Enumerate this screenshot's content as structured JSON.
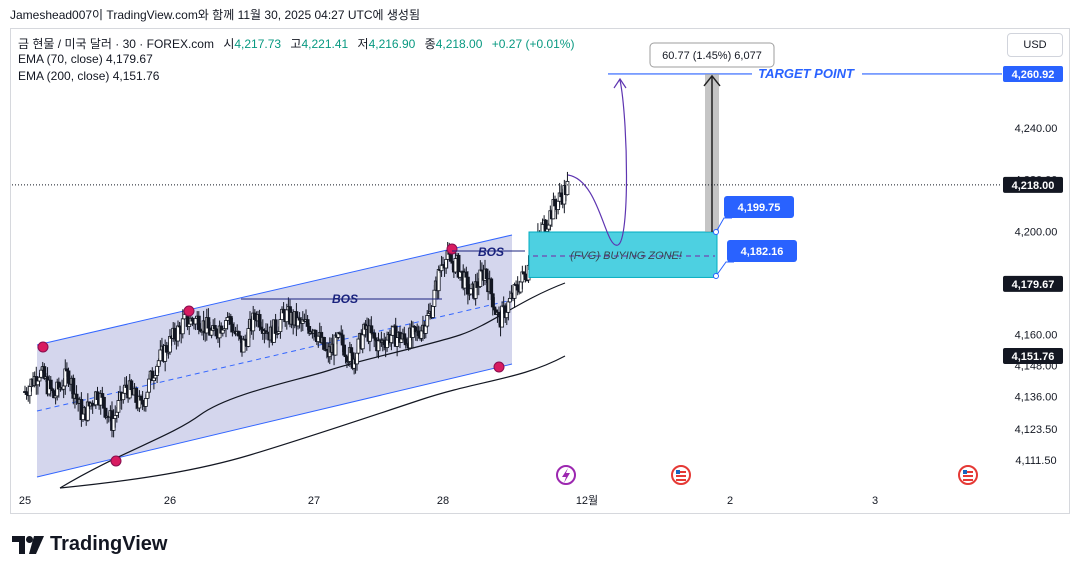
{
  "header": {
    "text": "Jameshead007이 TradingView.com와 함께 11월 30, 2025 04:27 UTC에 생성됨"
  },
  "legend": {
    "symbol": "금 현물 / 미국 달러 · 30 · FOREX.com",
    "open_label": "시",
    "open": "4,217.73",
    "high_label": "고",
    "high": "4,221.41",
    "low_label": "저",
    "low": "4,216.90",
    "close_label": "종",
    "close": "4,218.00",
    "change": "+0.27 (+0.01%)",
    "ema70": "EMA (70, close)  4,179.67",
    "ema200": "EMA (200, close)  4,151.76"
  },
  "toolbar": {
    "currency": "USD"
  },
  "annotations": {
    "bos1": "BOS",
    "bos2": "BOS",
    "fvg": "(FVG) BUYING ZONE!",
    "target": "TARGET POINT",
    "measure": "60.77 (1.45%) 6,077",
    "fvg_top": "4,199.75",
    "fvg_bottom": "4,182.16"
  },
  "footer": {
    "brand": "TradingView"
  },
  "colors": {
    "up": "#089981",
    "down": "#131722",
    "channel_fill": "#c9cce8",
    "channel_line": "#3366ff",
    "fvg_fill": "#4dd0e1",
    "label_blue": "#2962ff",
    "event_purple": "#9c27b0",
    "event_red": "#e53935"
  },
  "chart_data": {
    "type": "candlestick",
    "symbol": "XAUUSD 30",
    "price_axis": {
      "ticks": [
        4111.5,
        4123.5,
        4136.0,
        4148.0,
        4160.0,
        4180.0,
        4200.0,
        4220.0,
        4240.0
      ],
      "tick_labels": [
        "4,111.50",
        "4,123.50",
        "4,136.00",
        "4,148.00",
        "4,160.00",
        "4,180.00",
        "4,200.00",
        "4,220.00",
        "4,240.00"
      ]
    },
    "time_axis": {
      "labels": [
        "25",
        "26",
        "27",
        "28",
        "12월",
        "2",
        "3"
      ]
    },
    "price_labels": [
      {
        "value": 4260.92,
        "text": "4,260.92",
        "kind": "target"
      },
      {
        "value": 4218.0,
        "text": "4,218.00",
        "kind": "last"
      },
      {
        "value": 4179.67,
        "text": "4,179.67",
        "kind": "ema70"
      },
      {
        "value": 4151.76,
        "text": "4,151.76",
        "kind": "ema200"
      }
    ],
    "series": [
      {
        "name": "EMA (70, close)",
        "last": 4179.67
      },
      {
        "name": "EMA (200, close)",
        "last": 4151.76
      }
    ],
    "candles_path": [
      [
        25.0,
        4138
      ],
      [
        25.1,
        4146
      ],
      [
        25.2,
        4136
      ],
      [
        25.3,
        4145
      ],
      [
        25.4,
        4128
      ],
      [
        25.5,
        4138
      ],
      [
        25.6,
        4126
      ],
      [
        25.7,
        4140
      ],
      [
        25.8,
        4132
      ],
      [
        25.9,
        4148
      ],
      [
        26.0,
        4157
      ],
      [
        26.1,
        4165
      ],
      [
        26.2,
        4166
      ],
      [
        26.3,
        4160
      ],
      [
        26.4,
        4167
      ],
      [
        26.5,
        4155
      ],
      [
        26.6,
        4168
      ],
      [
        26.7,
        4160
      ],
      [
        26.8,
        4168
      ],
      [
        26.9,
        4164
      ],
      [
        27.0,
        4163
      ],
      [
        27.1,
        4152
      ],
      [
        27.2,
        4158
      ],
      [
        27.3,
        4150
      ],
      [
        27.4,
        4162
      ],
      [
        27.5,
        4156
      ],
      [
        27.6,
        4160
      ],
      [
        27.7,
        4158
      ],
      [
        27.8,
        4160
      ],
      [
        27.9,
        4168
      ],
      [
        28.0,
        4190
      ],
      [
        28.1,
        4187
      ],
      [
        28.2,
        4175
      ],
      [
        28.3,
        4185
      ],
      [
        28.4,
        4165
      ],
      [
        28.5,
        4175
      ],
      [
        28.6,
        4185
      ],
      [
        28.7,
        4200
      ],
      [
        28.8,
        4210
      ],
      [
        28.9,
        4218
      ]
    ],
    "ema70": [
      [
        25.0,
        4090
      ],
      [
        26.0,
        4128
      ],
      [
        27.0,
        4150
      ],
      [
        28.0,
        4158
      ],
      [
        28.5,
        4168
      ],
      [
        28.85,
        4179.67
      ]
    ],
    "ema200": [
      [
        25.2,
        4100
      ],
      [
        26.0,
        4110
      ],
      [
        27.0,
        4128
      ],
      [
        28.0,
        4140
      ],
      [
        28.85,
        4151.76
      ]
    ],
    "fvg_zone": {
      "top": 4199.75,
      "bottom": 4182.16,
      "label": "(FVG) BUYING ZONE!"
    },
    "target": {
      "price": 4260.92,
      "label": "TARGET POINT"
    },
    "measure": {
      "delta": 60.77,
      "percent": 1.45,
      "ticks": 6077
    }
  }
}
